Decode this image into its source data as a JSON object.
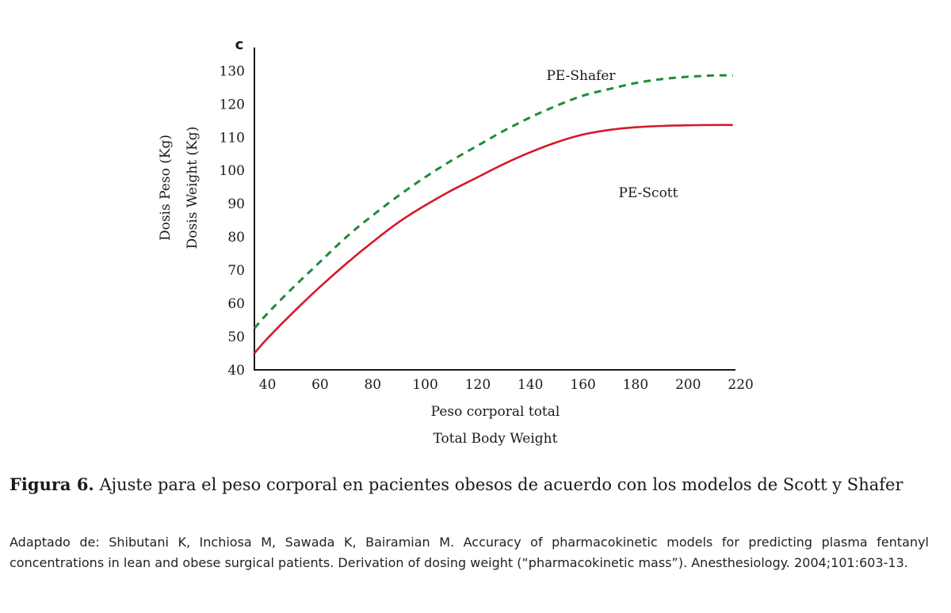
{
  "panel_letter": "C",
  "caption": {
    "figure_label": "Figura 6.",
    "text": "Ajuste para el peso corporal en pacientes obesos de acuerdo con los modelos de Scott y Shafer"
  },
  "source": "Adaptado de: Shibutani K, Inchiosa M, Sawada K, Bairamian M. Accuracy of pharmacokinetic models for predicting plasma fentanyl concentrations in lean and obese surgical patients. Derivation of dosing weight (“pharmacokinetic mass”). Anesthesiology. 2004;101:603-13.",
  "chart_data": {
    "type": "line",
    "title": "",
    "xlabel": [
      "Peso corporal total",
      "Total Body Weight"
    ],
    "ylabel": [
      "Dosis Peso (Kg)",
      "Dosis Weight (Kg)"
    ],
    "xlim": [
      35,
      218
    ],
    "ylim": [
      40,
      137
    ],
    "x_ticks": [
      40,
      60,
      80,
      100,
      120,
      140,
      160,
      180,
      200,
      220
    ],
    "y_ticks": [
      40,
      50,
      60,
      70,
      80,
      90,
      100,
      110,
      120,
      130
    ],
    "grid": false,
    "series": [
      {
        "name": "PE-Shafer",
        "color": "#1e8c3a",
        "style": "dashed",
        "x": [
          35,
          40,
          50,
          60,
          70,
          80,
          90,
          100,
          110,
          120,
          130,
          140,
          150,
          160,
          170,
          180,
          190,
          200,
          210,
          217
        ],
        "y": [
          52.5,
          57,
          65,
          72.5,
          80,
          86.5,
          92.5,
          98,
          103,
          107.5,
          112,
          116,
          119.5,
          122.5,
          124.5,
          126.3,
          127.5,
          128.2,
          128.6,
          128.6
        ]
      },
      {
        "name": "PE-Scott",
        "color": "#d7182a",
        "style": "solid",
        "x": [
          35,
          40,
          50,
          60,
          70,
          80,
          90,
          100,
          110,
          120,
          130,
          140,
          150,
          160,
          170,
          180,
          190,
          200,
          210,
          217
        ],
        "y": [
          45,
          49.5,
          57.5,
          65,
          72,
          78.5,
          84.5,
          89.5,
          94,
          98,
          102,
          105.5,
          108.5,
          110.8,
          112.2,
          113,
          113.4,
          113.6,
          113.7,
          113.7
        ]
      }
    ]
  }
}
